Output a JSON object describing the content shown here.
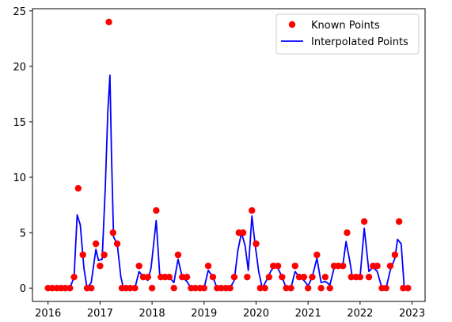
{
  "chart_data": {
    "type": "scatter",
    "title": "",
    "xlabel": "",
    "ylabel": "",
    "xlim": [
      2015.7,
      2023.25
    ],
    "ylim": [
      -1.2,
      25.2
    ],
    "grid": false,
    "legend_position": "top-right",
    "x_ticks": [
      {
        "value": 2016,
        "label": "2016"
      },
      {
        "value": 2017,
        "label": "2017"
      },
      {
        "value": 2018,
        "label": "2018"
      },
      {
        "value": 2019,
        "label": "2019"
      },
      {
        "value": 2020,
        "label": "2020"
      },
      {
        "value": 2021,
        "label": "2021"
      },
      {
        "value": 2022,
        "label": "2022"
      },
      {
        "value": 2023,
        "label": "2023"
      }
    ],
    "y_ticks": [
      {
        "value": 0,
        "label": "0"
      },
      {
        "value": 5,
        "label": "5"
      },
      {
        "value": 10,
        "label": "10"
      },
      {
        "value": 15,
        "label": "15"
      },
      {
        "value": 20,
        "label": "20"
      },
      {
        "value": 25,
        "label": "25"
      }
    ],
    "series": [
      {
        "name": "Known Points",
        "kind": "scatter",
        "color": "#ff0000",
        "points": [
          [
            2016.0,
            0
          ],
          [
            2016.08,
            0
          ],
          [
            2016.17,
            0
          ],
          [
            2016.25,
            0
          ],
          [
            2016.33,
            0
          ],
          [
            2016.42,
            0
          ],
          [
            2016.5,
            1
          ],
          [
            2016.58,
            9
          ],
          [
            2016.67,
            3
          ],
          [
            2016.75,
            0
          ],
          [
            2016.83,
            0
          ],
          [
            2016.92,
            4
          ],
          [
            2017.0,
            2
          ],
          [
            2017.08,
            3
          ],
          [
            2017.17,
            24
          ],
          [
            2017.25,
            5
          ],
          [
            2017.33,
            4
          ],
          [
            2017.42,
            0
          ],
          [
            2017.5,
            0
          ],
          [
            2017.58,
            0
          ],
          [
            2017.67,
            0
          ],
          [
            2017.75,
            2
          ],
          [
            2017.83,
            1
          ],
          [
            2017.92,
            1
          ],
          [
            2018.0,
            0
          ],
          [
            2018.08,
            7
          ],
          [
            2018.17,
            1
          ],
          [
            2018.25,
            1
          ],
          [
            2018.33,
            1
          ],
          [
            2018.42,
            0
          ],
          [
            2018.5,
            3
          ],
          [
            2018.58,
            1
          ],
          [
            2018.67,
            1
          ],
          [
            2018.75,
            0
          ],
          [
            2018.83,
            0
          ],
          [
            2018.92,
            0
          ],
          [
            2019.0,
            0
          ],
          [
            2019.08,
            2
          ],
          [
            2019.17,
            1
          ],
          [
            2019.25,
            0
          ],
          [
            2019.33,
            0
          ],
          [
            2019.42,
            0
          ],
          [
            2019.5,
            0
          ],
          [
            2019.58,
            1
          ],
          [
            2019.67,
            5
          ],
          [
            2019.75,
            5
          ],
          [
            2019.83,
            1
          ],
          [
            2019.92,
            7
          ],
          [
            2020.0,
            4
          ],
          [
            2020.08,
            0
          ],
          [
            2020.17,
            0
          ],
          [
            2020.25,
            1
          ],
          [
            2020.33,
            2
          ],
          [
            2020.42,
            2
          ],
          [
            2020.5,
            1
          ],
          [
            2020.58,
            0
          ],
          [
            2020.67,
            0
          ],
          [
            2020.75,
            2
          ],
          [
            2020.83,
            1
          ],
          [
            2020.92,
            1
          ],
          [
            2021.0,
            0
          ],
          [
            2021.08,
            1
          ],
          [
            2021.17,
            3
          ],
          [
            2021.25,
            0
          ],
          [
            2021.33,
            1
          ],
          [
            2021.42,
            0
          ],
          [
            2021.5,
            2
          ],
          [
            2021.58,
            2
          ],
          [
            2021.67,
            2
          ],
          [
            2021.75,
            5
          ],
          [
            2021.83,
            1
          ],
          [
            2021.92,
            1
          ],
          [
            2022.0,
            1
          ],
          [
            2022.08,
            6
          ],
          [
            2022.17,
            1
          ],
          [
            2022.25,
            2
          ],
          [
            2022.33,
            2
          ],
          [
            2022.42,
            0
          ],
          [
            2022.5,
            0
          ],
          [
            2022.58,
            2
          ],
          [
            2022.67,
            3
          ],
          [
            2022.75,
            6
          ],
          [
            2022.83,
            0
          ],
          [
            2022.92,
            0
          ]
        ]
      },
      {
        "name": "Interpolated Points",
        "kind": "line",
        "color": "#0000ff",
        "points": [
          [
            2016.0,
            0
          ],
          [
            2016.08,
            0
          ],
          [
            2016.17,
            0
          ],
          [
            2016.25,
            0
          ],
          [
            2016.33,
            0
          ],
          [
            2016.42,
            0
          ],
          [
            2016.5,
            1
          ],
          [
            2016.56,
            6.6
          ],
          [
            2016.62,
            5.7
          ],
          [
            2016.69,
            1.8
          ],
          [
            2016.75,
            0
          ],
          [
            2016.83,
            0.5
          ],
          [
            2016.92,
            3.5
          ],
          [
            2016.97,
            2.5
          ],
          [
            2017.04,
            2.6
          ],
          [
            2017.1,
            9
          ],
          [
            2017.15,
            16
          ],
          [
            2017.19,
            19.2
          ],
          [
            2017.22,
            12
          ],
          [
            2017.26,
            4.6
          ],
          [
            2017.33,
            4
          ],
          [
            2017.4,
            1
          ],
          [
            2017.45,
            0
          ],
          [
            2017.58,
            0
          ],
          [
            2017.67,
            0
          ],
          [
            2017.75,
            1.5
          ],
          [
            2017.83,
            1
          ],
          [
            2017.92,
            0.7
          ],
          [
            2017.98,
            1.8
          ],
          [
            2018.08,
            6.1
          ],
          [
            2018.15,
            1
          ],
          [
            2018.25,
            1
          ],
          [
            2018.33,
            1
          ],
          [
            2018.42,
            0.5
          ],
          [
            2018.5,
            2.6
          ],
          [
            2018.58,
            1
          ],
          [
            2018.67,
            0.6
          ],
          [
            2018.75,
            0
          ],
          [
            2018.92,
            0
          ],
          [
            2019.0,
            0
          ],
          [
            2019.08,
            1.6
          ],
          [
            2019.17,
            1
          ],
          [
            2019.25,
            0
          ],
          [
            2019.42,
            0
          ],
          [
            2019.5,
            0
          ],
          [
            2019.58,
            0.7
          ],
          [
            2019.65,
            3.4
          ],
          [
            2019.72,
            5
          ],
          [
            2019.79,
            3.8
          ],
          [
            2019.85,
            1.6
          ],
          [
            2019.92,
            6.5
          ],
          [
            2019.98,
            4
          ],
          [
            2020.05,
            1.5
          ],
          [
            2020.12,
            0
          ],
          [
            2020.2,
            0.7
          ],
          [
            2020.28,
            1.5
          ],
          [
            2020.35,
            2
          ],
          [
            2020.42,
            1.8
          ],
          [
            2020.5,
            1
          ],
          [
            2020.58,
            0
          ],
          [
            2020.67,
            0
          ],
          [
            2020.75,
            1.5
          ],
          [
            2020.83,
            1
          ],
          [
            2020.92,
            0.7
          ],
          [
            2021.0,
            0.2
          ],
          [
            2021.08,
            1
          ],
          [
            2021.17,
            2.7
          ],
          [
            2021.25,
            0.5
          ],
          [
            2021.33,
            0.6
          ],
          [
            2021.42,
            0.3
          ],
          [
            2021.5,
            1.8
          ],
          [
            2021.58,
            2
          ],
          [
            2021.67,
            2.1
          ],
          [
            2021.73,
            4.2
          ],
          [
            2021.8,
            2.5
          ],
          [
            2021.85,
            1
          ],
          [
            2021.92,
            1
          ],
          [
            2022.0,
            1
          ],
          [
            2022.08,
            5.4
          ],
          [
            2022.17,
            1.5
          ],
          [
            2022.25,
            1.9
          ],
          [
            2022.33,
            1.5
          ],
          [
            2022.42,
            0
          ],
          [
            2022.5,
            0
          ],
          [
            2022.58,
            1.6
          ],
          [
            2022.67,
            2.7
          ],
          [
            2022.72,
            4.4
          ],
          [
            2022.79,
            4
          ],
          [
            2022.85,
            0
          ],
          [
            2022.92,
            0
          ]
        ]
      }
    ]
  }
}
